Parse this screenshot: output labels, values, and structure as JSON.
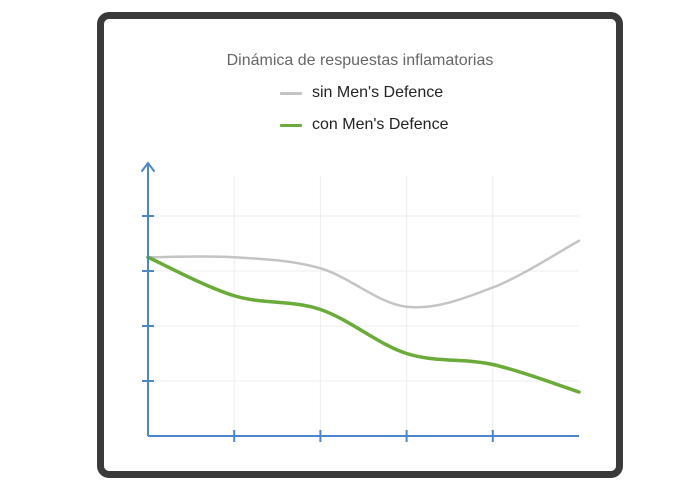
{
  "chart_data": {
    "type": "line",
    "title": "Dinámica de respuestas inflamatorias",
    "xlabel": "",
    "ylabel": "",
    "x": [
      0,
      1,
      2,
      3,
      4,
      5
    ],
    "xlim": [
      0,
      5
    ],
    "ylim": [
      0,
      4
    ],
    "x_tick_labels": [],
    "y_tick_labels": [],
    "grid": true,
    "legend": "top",
    "series": [
      {
        "name": "sin Men's Defence",
        "color": "#c4c4c4",
        "values": [
          3.25,
          3.25,
          3.05,
          2.35,
          2.7,
          3.55
        ]
      },
      {
        "name": "con Men's Defence",
        "color": "#6aab3a",
        "values": [
          3.25,
          2.55,
          2.3,
          1.5,
          1.3,
          0.8
        ]
      }
    ]
  }
}
